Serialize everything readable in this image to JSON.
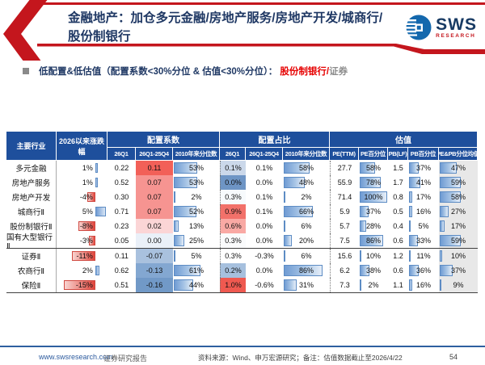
{
  "title": {
    "line1": "金融地产：加仓多元金融/房地产服务/房地产开发/城商行/",
    "line2": "股份制银行"
  },
  "logo": {
    "name": "SWS",
    "sub": "RESEARCH"
  },
  "subtitle": {
    "prefix": "低配置&低估值（配置系数<30%分位 & 估值<30%分位）： ",
    "highlight": "股份制银行/",
    "suffix": "证券"
  },
  "colors": {
    "accent_red": "#c4161d",
    "header_blue": "#1e4f9c",
    "title_navy": "#1f3864",
    "bar_blue": "#6f9bd3",
    "bar_red": "#e0453c"
  },
  "table": {
    "columns": {
      "industry": "主要行业",
      "change": "2026以来涨跌幅",
      "groups": [
        {
          "label": "配置系数",
          "cols": [
            "26Q1",
            "26Q1-25Q4",
            "2010年来分位数"
          ]
        },
        {
          "label": "配置占比",
          "cols": [
            "26Q1",
            "26Q1-25Q4",
            "2010年来分位数"
          ]
        },
        {
          "label": "估值",
          "cols": [
            "PE(TTM)",
            "PE百分位",
            "PB(LF)",
            "PB百分位",
            "PE&PB分位均值"
          ]
        }
      ]
    },
    "rows": [
      {
        "name": "多元金融",
        "chg": "1%",
        "chg_v": 1,
        "cfg_q1": "0.22",
        "cfg_d": "0.11",
        "cfg_d_bg": "#f26058",
        "cfg_pct": "53%",
        "cfg_pct_v": 53,
        "alloc_q1": "0.1%",
        "alloc_q1_bg": "#cbd8ea",
        "alloc_d": "0.1%",
        "alloc_pct": "58%",
        "alloc_pct_v": 58,
        "pe": "27.7",
        "pe_pct": "58%",
        "pe_pct_v": 58,
        "pb": "1.5",
        "pb_pct": "37%",
        "pb_pct_v": 37,
        "avg": "47%",
        "avg_v": 47
      },
      {
        "name": "房地产服务",
        "chg": "1%",
        "chg_v": 1,
        "cfg_q1": "0.52",
        "cfg_d": "0.07",
        "cfg_d_bg": "#f69491",
        "cfg_pct": "53%",
        "cfg_pct_v": 53,
        "alloc_q1": "0.0%",
        "alloc_q1_bg": "#6e95c5",
        "alloc_d": "0.0%",
        "alloc_pct": "48%",
        "alloc_pct_v": 48,
        "pe": "55.9",
        "pe_pct": "78%",
        "pe_pct_v": 78,
        "pb": "1.7",
        "pb_pct": "41%",
        "pb_pct_v": 41,
        "avg": "59%",
        "avg_v": 59
      },
      {
        "name": "房地产开发",
        "chg": "-4%",
        "chg_v": -4,
        "cfg_q1": "0.30",
        "cfg_d": "0.07",
        "cfg_d_bg": "#f69491",
        "cfg_pct": "2%",
        "cfg_pct_v": 2,
        "alloc_q1": "0.3%",
        "alloc_q1_bg": "#f7fafc",
        "alloc_d": "0.1%",
        "alloc_pct": "2%",
        "alloc_pct_v": 2,
        "pe": "71.4",
        "pe_pct": "100%",
        "pe_pct_v": 100,
        "pb": "0.8",
        "pb_pct": "17%",
        "pb_pct_v": 17,
        "avg": "58%",
        "avg_v": 58
      },
      {
        "name": "城商行Ⅱ",
        "chg": "5%",
        "chg_v": 5,
        "cfg_q1": "0.71",
        "cfg_d": "0.07",
        "cfg_d_bg": "#f69491",
        "cfg_pct": "52%",
        "cfg_pct_v": 52,
        "alloc_q1": "0.9%",
        "alloc_q1_bg": "#f2716a",
        "alloc_d": "0.1%",
        "alloc_pct": "66%",
        "alloc_pct_v": 66,
        "pe": "5.9",
        "pe_pct": "37%",
        "pe_pct_v": 37,
        "pb": "0.5",
        "pb_pct": "16%",
        "pb_pct_v": 16,
        "avg": "27%",
        "avg_v": 27
      },
      {
        "name": "股份制银行Ⅱ",
        "chg": "-8%",
        "chg_v": -8,
        "cfg_q1": "0.23",
        "cfg_d": "0.02",
        "cfg_d_bg": "#fbd5d6",
        "cfg_pct": "13%",
        "cfg_pct_v": 13,
        "alloc_q1": "0.6%",
        "alloc_q1_bg": "#f9a9a4",
        "alloc_d": "0.0%",
        "alloc_pct": "6%",
        "alloc_pct_v": 6,
        "pe": "5.7",
        "pe_pct": "28%",
        "pe_pct_v": 28,
        "pb": "0.4",
        "pb_pct": "5%",
        "pb_pct_v": 5,
        "avg": "17%",
        "avg_v": 17
      },
      {
        "name": "国有大型银行Ⅱ",
        "chg": "-3%",
        "chg_v": -3,
        "cfg_q1": "0.05",
        "cfg_d": "0.00",
        "cfg_d_bg": "#eaf0f8",
        "cfg_pct": "25%",
        "cfg_pct_v": 25,
        "alloc_q1": "0.3%",
        "alloc_q1_bg": "#fafbfc",
        "alloc_d": "0.0%",
        "alloc_pct": "20%",
        "alloc_pct_v": 20,
        "pe": "7.5",
        "pe_pct": "86%",
        "pe_pct_v": 86,
        "pb": "0.6",
        "pb_pct": "33%",
        "pb_pct_v": 33,
        "avg": "59%",
        "avg_v": 59,
        "sep": true
      },
      {
        "name": "证券Ⅱ",
        "chg": "-11%",
        "chg_v": -11,
        "cfg_q1": "0.11",
        "cfg_d": "-0.07",
        "cfg_d_bg": "#a9c1de",
        "cfg_pct": "5%",
        "cfg_pct_v": 5,
        "alloc_q1": "0.3%",
        "alloc_q1_bg": "#ffffff",
        "alloc_d": "-0.3%",
        "alloc_pct": "6%",
        "alloc_pct_v": 6,
        "pe": "15.6",
        "pe_pct": "10%",
        "pe_pct_v": 10,
        "pb": "1.2",
        "pb_pct": "11%",
        "pb_pct_v": 11,
        "avg": "10%",
        "avg_v": 10
      },
      {
        "name": "农商行Ⅱ",
        "chg": "2%",
        "chg_v": 2,
        "cfg_q1": "0.62",
        "cfg_d": "-0.13",
        "cfg_d_bg": "#83a7d1",
        "cfg_pct": "61%",
        "cfg_pct_v": 61,
        "alloc_q1": "0.2%",
        "alloc_q1_bg": "#a6c0de",
        "alloc_d": "0.0%",
        "alloc_pct": "86%",
        "alloc_pct_v": 86,
        "pe": "6.2",
        "pe_pct": "38%",
        "pe_pct_v": 38,
        "pb": "0.6",
        "pb_pct": "36%",
        "pb_pct_v": 36,
        "avg": "37%",
        "avg_v": 37
      },
      {
        "name": "保险Ⅱ",
        "chg": "-15%",
        "chg_v": -15,
        "cfg_q1": "0.51",
        "cfg_d": "-0.16",
        "cfg_d_bg": "#7199c7",
        "cfg_pct": "44%",
        "cfg_pct_v": 44,
        "alloc_q1": "1.0%",
        "alloc_q1_bg": "#ef5950",
        "alloc_d": "-0.6%",
        "alloc_pct": "31%",
        "alloc_pct_v": 31,
        "pe": "7.3",
        "pe_pct": "2%",
        "pe_pct_v": 2,
        "pb": "1.1",
        "pb_pct": "16%",
        "pb_pct_v": 16,
        "avg": "9%",
        "avg_v": 9
      }
    ]
  },
  "footer": {
    "url": "www.swsresearch.com",
    "label": "证券研究报告",
    "source": "资料来源：Wind、申万宏源研究；备注：估值数据截止至2026/4/22",
    "page": "54"
  }
}
